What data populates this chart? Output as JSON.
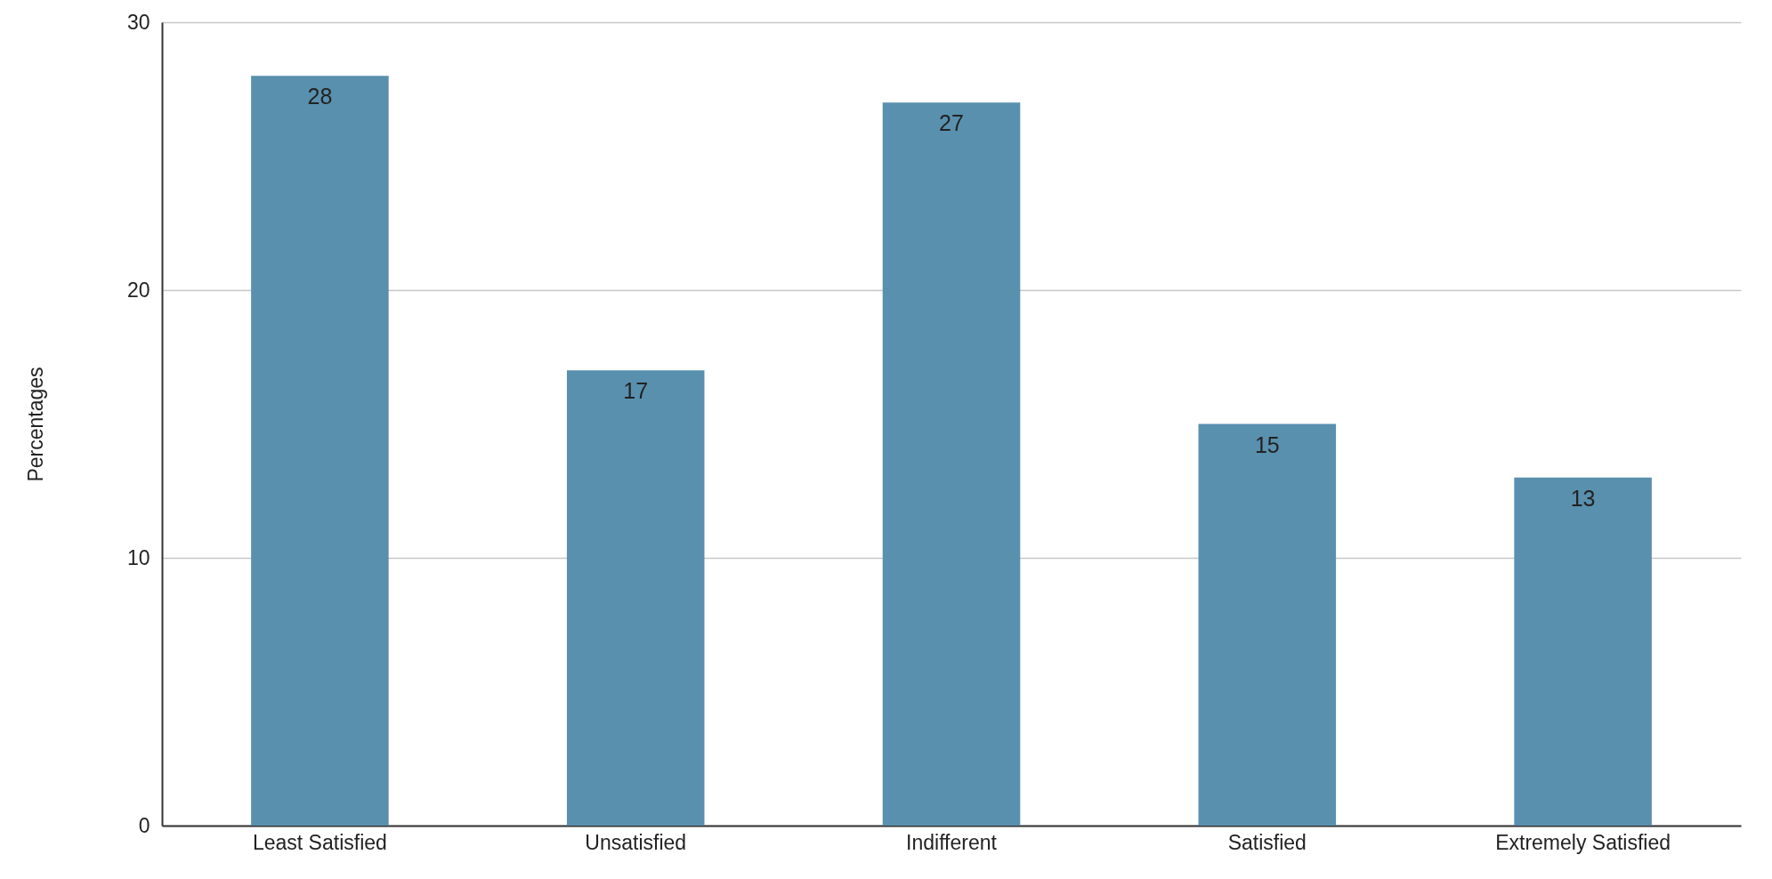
{
  "chart_data": {
    "type": "bar",
    "ylabel": "Percentages",
    "categories": [
      "Least Satisfied",
      "Unsatisfied",
      "Indifferent",
      "Satisfied",
      "Extremely Satisfied"
    ],
    "values": [
      28,
      17,
      27,
      15,
      13
    ],
    "color": "#5990ae",
    "ylim": [
      0,
      30
    ],
    "yticks": [
      0,
      10,
      20,
      30
    ],
    "grid": "y",
    "data_labels": true
  }
}
